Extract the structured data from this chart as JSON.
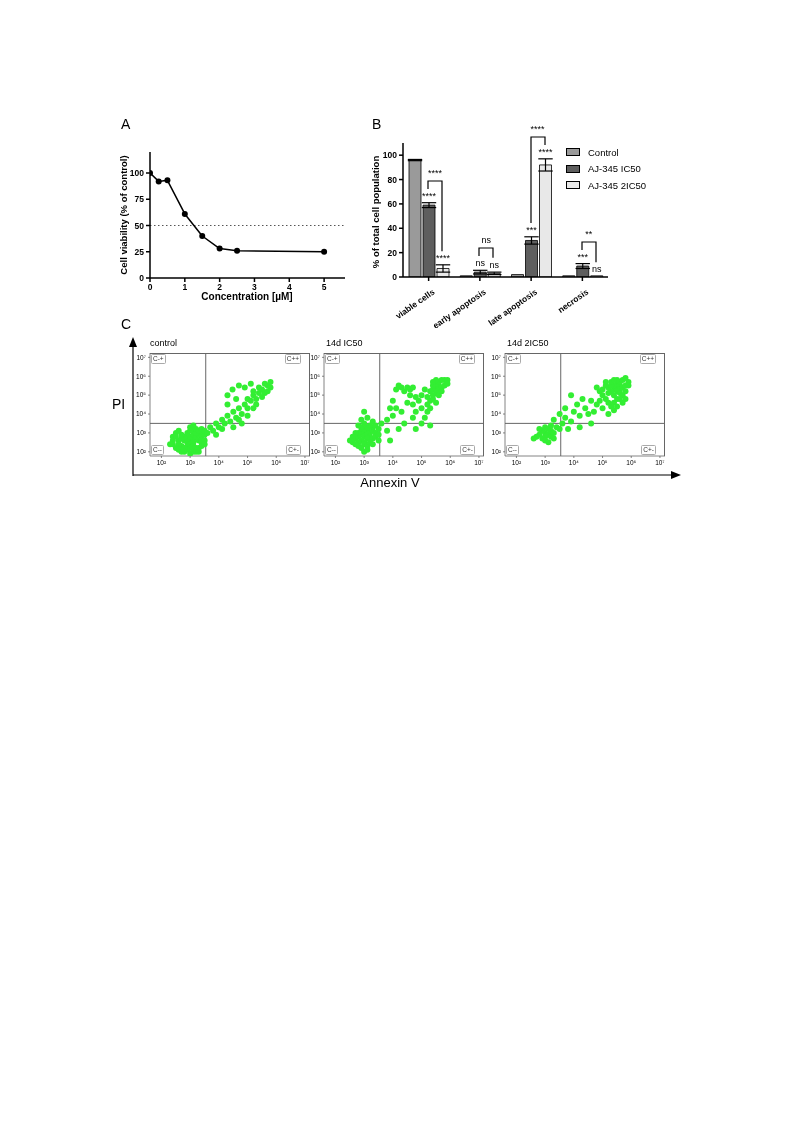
{
  "chart_data": [
    {
      "type": "line",
      "title": "A",
      "xlabel": "Concentration [µM]",
      "ylabel": "Cell viability (% of control)",
      "x": [
        0,
        0.25,
        0.5,
        1,
        1.5,
        2,
        2.5,
        5
      ],
      "values": [
        100,
        92,
        93,
        61,
        40,
        28,
        26,
        25
      ],
      "color": "#000000",
      "marker": "circle",
      "line_style": "solid",
      "xlim": [
        0,
        5.6
      ],
      "ylim": [
        0,
        120
      ],
      "xticks": [
        0,
        1,
        2,
        3,
        4,
        5
      ],
      "yticks": [
        0,
        25,
        50,
        75,
        100
      ],
      "ref_lines": [
        {
          "axis": "y",
          "value": 50,
          "color": "#555555",
          "line_style": "dotted"
        }
      ]
    },
    {
      "type": "bar",
      "title": "B",
      "ylabel": "% of total cell population",
      "categories": [
        "viable cells",
        "early apoptosis",
        "late apoptosis",
        "necrosis"
      ],
      "series": [
        {
          "name": "Control",
          "color": "#9a9a9a",
          "values": [
            96,
            1,
            2,
            1
          ],
          "errors": [
            0.5,
            null,
            null,
            null
          ]
        },
        {
          "name": "AJ-345 IC50",
          "color": "#5e5e5e",
          "values": [
            59,
            4,
            30,
            9
          ],
          "errors": [
            2,
            1.5,
            3,
            2
          ],
          "value_labels": [
            "****",
            "ns",
            "***",
            "***"
          ]
        },
        {
          "name": "AJ-345 2IC50",
          "color": "#e8e8e8",
          "values": [
            7,
            3,
            92,
            1
          ],
          "errors": [
            3,
            1,
            5,
            null
          ],
          "value_labels": [
            "****",
            "ns",
            "****",
            "ns"
          ]
        }
      ],
      "ylim": [
        0,
        110
      ],
      "yticks": [
        0,
        20,
        40,
        60,
        80,
        100
      ],
      "legend": "top right",
      "annotations": [
        "****",
        "ns",
        "****",
        "**"
      ]
    },
    {
      "type": "scatter",
      "title": "C",
      "subtitle": "control",
      "ylabel": "PI",
      "x": [
        1000,
        800,
        1300,
        1000,
        800,
        1300,
        630,
        1000,
        800,
        1300,
        1000,
        2000,
        630,
        1300,
        1600,
        500,
        400,
        2500,
        1600,
        800,
        630,
        1300,
        2000,
        500,
        2500,
        1600,
        800,
        400,
        1000,
        1300,
        2000,
        3200,
        630,
        2500,
        1600,
        1000,
        500,
        1000,
        1300,
        200,
        250,
        320,
        250,
        320,
        400,
        320,
        2500,
        3200,
        2000,
        2500,
        3200,
        400,
        500,
        1600,
        2000,
        250,
        3200,
        4000,
        5000,
        6300,
        8000,
        10000,
        13000,
        16000,
        20000,
        25000,
        32000,
        40000,
        50000,
        63000,
        80000,
        100000,
        130000,
        160000,
        200000,
        250000,
        320000,
        400000,
        500000,
        630000,
        400000,
        250000,
        160000,
        630000,
        500000,
        320000,
        200000,
        100000,
        50000,
        32000,
        63000,
        13000,
        8000,
        100000,
        160000,
        20000,
        40000,
        20000,
        50000,
        30000,
        80000,
        130000
      ],
      "values": [
        400,
        320,
        500,
        250,
        500,
        320,
        400,
        630,
        200,
        200,
        160,
        400,
        630,
        800,
        630,
        500,
        400,
        500,
        160,
        130,
        160,
        1300,
        800,
        200,
        320,
        1000,
        1000,
        250,
        80,
        100,
        160,
        400,
        100,
        1000,
        1600,
        1300,
        800,
        2000,
        2500,
        250,
        400,
        160,
        630,
        1000,
        1300,
        630,
        200,
        250,
        1300,
        1600,
        800,
        130,
        100,
        100,
        100,
        250,
        1300,
        1000,
        2000,
        1300,
        3200,
        2000,
        5000,
        3200,
        8000,
        4000,
        13000,
        6300,
        20000,
        10000,
        32000,
        20000,
        50000,
        100000,
        63000,
        130000,
        200000,
        130000,
        320000,
        250000,
        400000,
        250000,
        160000,
        500000,
        160000,
        80000,
        32000,
        63000,
        5000,
        2000,
        3200,
        1600,
        800,
        8000,
        20000,
        32000,
        63000,
        100000,
        320000,
        200000,
        250000,
        400000
      ],
      "color": "#33ee33",
      "marker": "circle",
      "log": "xy",
      "xlim": [
        40,
        15000000
      ],
      "ylim": [
        60,
        17000000
      ],
      "xticks": [
        {
          "value": 100,
          "label": "10²"
        },
        {
          "value": 1000,
          "label": "10³"
        },
        {
          "value": 10000,
          "label": "10⁴"
        },
        {
          "value": 100000,
          "label": "10⁵"
        },
        {
          "value": 1000000,
          "label": "10⁶"
        },
        {
          "value": 10000000,
          "label": "10⁷"
        }
      ],
      "yticks": [
        {
          "value": 100,
          "label": "10²"
        },
        {
          "value": 1000,
          "label": "10³"
        },
        {
          "value": 10000,
          "label": "10⁴"
        },
        {
          "value": 100000,
          "label": "10⁵"
        },
        {
          "value": 1000000,
          "label": "10⁶"
        },
        {
          "value": 10000000,
          "label": "10⁷"
        }
      ],
      "ref_lines": [
        {
          "axis": "x",
          "value": 3500,
          "color": "#666666"
        },
        {
          "axis": "y",
          "value": 3200,
          "color": "#666666"
        }
      ],
      "annotations": [
        "C-+",
        "C++",
        "C--",
        "C+-"
      ]
    },
    {
      "type": "scatter",
      "title": "14d IC50",
      "xlabel": "Annexin V",
      "x": [
        1000,
        800,
        1300,
        630,
        1000,
        1300,
        800,
        1600,
        630,
        1000,
        1600,
        500,
        2000,
        1300,
        800,
        1000,
        630,
        2000,
        1300,
        800,
        500,
        400,
        2500,
        2000,
        1000,
        630,
        1300,
        800,
        1000,
        1600,
        400,
        320,
        2500,
        1600,
        1000,
        800,
        1300,
        2000,
        2500,
        3200,
        3200,
        630,
        1000,
        500,
        1300,
        2000,
        3200,
        320000,
        400000,
        250000,
        320000,
        400000,
        500000,
        250000,
        630000,
        400000,
        800000,
        200000,
        320000,
        250000,
        200000,
        160000,
        250000,
        320000,
        400000,
        500000,
        160000,
        200000,
        630000,
        800000,
        160000,
        130000,
        500000,
        320000,
        250000,
        13000,
        20000,
        25000,
        32000,
        16000,
        40000,
        50000,
        4000,
        6300,
        10000,
        13000,
        20000,
        32000,
        50000,
        63000,
        80000,
        100000,
        40000,
        10000,
        8000,
        63000,
        100000,
        130000,
        50000,
        25000,
        16000,
        6300,
        100000,
        200000,
        63000,
        8000
      ],
      "values": [
        1000,
        800,
        1300,
        630,
        630,
        800,
        1300,
        1000,
        1000,
        1600,
        630,
        500,
        1300,
        500,
        400,
        320,
        320,
        2000,
        2000,
        2000,
        1000,
        630,
        1000,
        500,
        250,
        200,
        200,
        160,
        100,
        320,
        320,
        400,
        2500,
        2500,
        3200,
        5000,
        6300,
        4000,
        630,
        1600,
        800,
        2500,
        13000,
        250,
        130,
        250,
        400,
        250000,
        320000,
        200000,
        400000,
        200000,
        250000,
        320000,
        630000,
        500000,
        630000,
        160000,
        130000,
        100000,
        50000,
        32000,
        63000,
        40000,
        100000,
        160000,
        13000,
        20000,
        320000,
        400000,
        80000,
        200000,
        630000,
        630000,
        500000,
        200000,
        250000,
        160000,
        250000,
        320000,
        200000,
        250000,
        3200,
        5000,
        8000,
        20000,
        13000,
        40000,
        32000,
        80000,
        50000,
        100000,
        100000,
        50000,
        20000,
        13000,
        20000,
        6300,
        6300,
        3200,
        1600,
        1300,
        3200,
        2500,
        1600,
        400
      ],
      "color": "#33ee33",
      "marker": "circle",
      "log": "xy",
      "xlim": [
        40,
        15000000
      ],
      "ylim": [
        60,
        17000000
      ],
      "xticks": [
        {
          "value": 100,
          "label": "10²"
        },
        {
          "value": 1000,
          "label": "10³"
        },
        {
          "value": 10000,
          "label": "10⁴"
        },
        {
          "value": 100000,
          "label": "10⁵"
        },
        {
          "value": 1000000,
          "label": "10⁶"
        },
        {
          "value": 10000000,
          "label": "10⁷"
        }
      ],
      "yticks": [
        {
          "value": 100,
          "label": "10²"
        },
        {
          "value": 1000,
          "label": "10³"
        },
        {
          "value": 10000,
          "label": "10⁴"
        },
        {
          "value": 100000,
          "label": "10⁵"
        },
        {
          "value": 1000000,
          "label": "10⁶"
        },
        {
          "value": 10000000,
          "label": "10⁷"
        }
      ],
      "ref_lines": [
        {
          "axis": "x",
          "value": 3500,
          "color": "#666666"
        },
        {
          "axis": "y",
          "value": 3200,
          "color": "#666666"
        }
      ],
      "annotations": [
        "C-+",
        "C++",
        "C--",
        "C+-"
      ]
    },
    {
      "type": "scatter",
      "title": "14d 2IC50",
      "x": [
        320000,
        250000,
        400000,
        200000,
        320000,
        500000,
        250000,
        400000,
        160000,
        630000,
        200000,
        320000,
        250000,
        160000,
        400000,
        800000,
        320000,
        500000,
        100000,
        130000,
        200000,
        400000,
        500000,
        320000,
        250000,
        400000,
        200000,
        160000,
        630000,
        100000,
        130000,
        80000,
        100000,
        500000,
        160000,
        250000,
        320000,
        630000,
        800000,
        80000,
        63000,
        130000,
        250000,
        630000,
        1000,
        1300,
        800,
        1000,
        630,
        1600,
        1300,
        800,
        1600,
        500,
        1000,
        2000,
        630,
        1300,
        2500,
        1000,
        400,
        2000,
        1600,
        3200,
        4000,
        5000,
        8000,
        10000,
        16000,
        25000,
        32000,
        40000,
        63000,
        13000,
        20000,
        3200,
        5000,
        8000,
        40000,
        16000,
        6300,
        50000,
        2000
      ],
      "values": [
        250000,
        200000,
        320000,
        160000,
        400000,
        250000,
        320000,
        200000,
        250000,
        320000,
        320000,
        160000,
        100000,
        130000,
        500000,
        500000,
        630000,
        630000,
        200000,
        320000,
        500000,
        130000,
        100000,
        63000,
        40000,
        63000,
        25000,
        40000,
        160000,
        100000,
        63000,
        50000,
        20000,
        40000,
        10000,
        16000,
        25000,
        63000,
        320000,
        160000,
        250000,
        500000,
        630000,
        800000,
        1000,
        800,
        1300,
        630,
        800,
        1300,
        1600,
        500,
        630,
        630,
        400,
        1000,
        1600,
        320,
        2000,
        2000,
        500,
        500,
        2500,
        1600,
        3200,
        6300,
        4000,
        13000,
        8000,
        20000,
        10000,
        50000,
        32000,
        32000,
        63000,
        10000,
        20000,
        100000,
        3200,
        2000,
        1600,
        13000,
        5000
      ],
      "color": "#33ee33",
      "marker": "circle",
      "log": "xy",
      "xlim": [
        40,
        15000000
      ],
      "ylim": [
        60,
        17000000
      ],
      "xticks": [
        {
          "value": 100,
          "label": "10²"
        },
        {
          "value": 1000,
          "label": "10³"
        },
        {
          "value": 10000,
          "label": "10⁴"
        },
        {
          "value": 100000,
          "label": "10⁵"
        },
        {
          "value": 1000000,
          "label": "10⁶"
        },
        {
          "value": 10000000,
          "label": "10⁷"
        }
      ],
      "yticks": [
        {
          "value": 100,
          "label": "10²"
        },
        {
          "value": 1000,
          "label": "10³"
        },
        {
          "value": 10000,
          "label": "10⁴"
        },
        {
          "value": 100000,
          "label": "10⁵"
        },
        {
          "value": 1000000,
          "label": "10⁶"
        },
        {
          "value": 10000000,
          "label": "10⁷"
        }
      ],
      "ref_lines": [
        {
          "axis": "x",
          "value": 3500,
          "color": "#666666"
        },
        {
          "axis": "y",
          "value": 3200,
          "color": "#666666"
        }
      ],
      "annotations": [
        "C-+",
        "C++",
        "C--",
        "C+-"
      ]
    }
  ]
}
